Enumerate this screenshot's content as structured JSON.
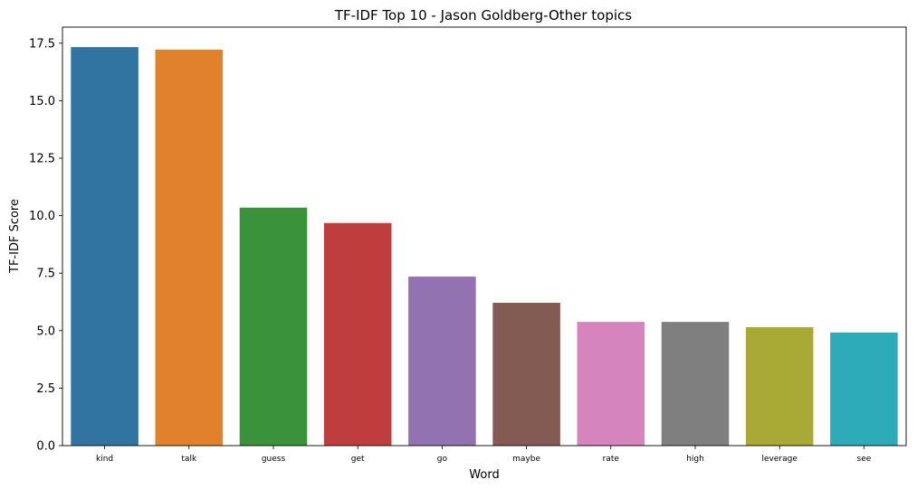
{
  "chart_data": {
    "type": "bar",
    "title": "TF-IDF Top 10 - Jason Goldberg-Other topics",
    "xlabel": "Word",
    "ylabel": "TF-IDF Score",
    "categories": [
      "kind",
      "talk",
      "guess",
      "get",
      "go",
      "maybe",
      "rate",
      "high",
      "leverage",
      "see"
    ],
    "values": [
      17.33,
      17.22,
      10.35,
      9.68,
      7.35,
      6.21,
      5.38,
      5.38,
      5.15,
      4.92
    ],
    "colors": [
      "#3274a1",
      "#e1812c",
      "#3a923a",
      "#c03d3e",
      "#9372b2",
      "#845b53",
      "#d684bd",
      "#7f7f7f",
      "#a9aa35",
      "#2eabb8"
    ],
    "ylim": [
      0,
      18.2
    ],
    "yticks": [
      "0.0",
      "2.5",
      "5.0",
      "7.5",
      "10.0",
      "12.5",
      "15.0",
      "17.5"
    ],
    "grid": false,
    "legend": "none"
  }
}
